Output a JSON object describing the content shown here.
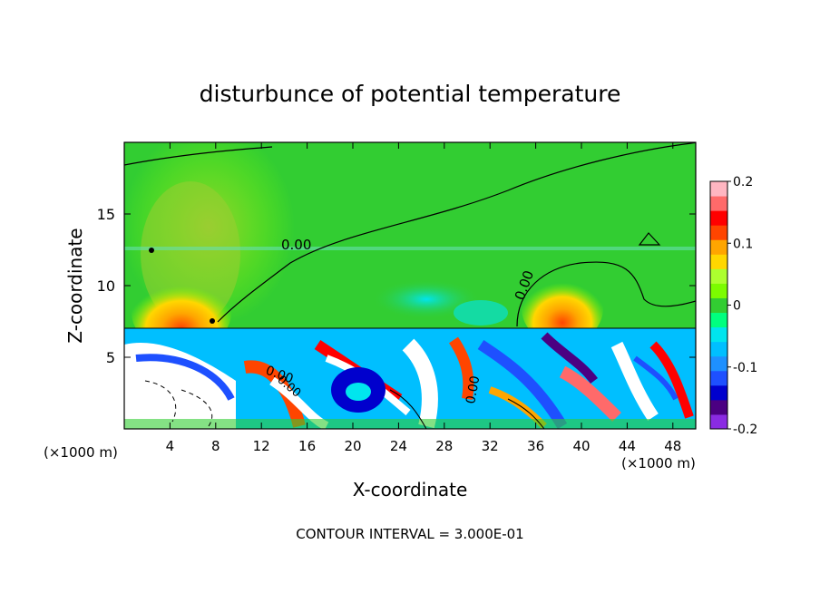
{
  "chart_data": {
    "type": "heatmap",
    "title": "disturbunce of potential temperature",
    "xlabel": "X-coordinate",
    "ylabel": "Z-coordinate",
    "x_unit_label": "(×1000 m)",
    "x_unit_label_right": "(×1000 m)",
    "xlim": [
      0,
      50
    ],
    "ylim": [
      0,
      20
    ],
    "x_ticks": [
      "4",
      "8",
      "12",
      "16",
      "20",
      "24",
      "28",
      "32",
      "36",
      "40",
      "44",
      "48"
    ],
    "y_ticks": [
      "5",
      "10",
      "15"
    ],
    "colorbar": {
      "range": [
        -0.2,
        0.2
      ],
      "tick_labels": [
        "0.2",
        "0.1",
        "0",
        "-0.1",
        "-0.2"
      ],
      "colors": [
        "#8a2be2",
        "#4b0082",
        "#0000cd",
        "#1e50ff",
        "#1e90ff",
        "#00bfff",
        "#00e5ee",
        "#00ff7f",
        "#32cd32",
        "#7cfc00",
        "#adff2f",
        "#ffd700",
        "#ffa500",
        "#ff4500",
        "#ff0000",
        "#ff6a6a",
        "#ffb6c1"
      ]
    },
    "contour_labels": [
      "0.00",
      "0.00",
      "0.00",
      "0.00",
      "0.00"
    ],
    "footer": "CONTOUR INTERVAL = 3.000E-01"
  }
}
